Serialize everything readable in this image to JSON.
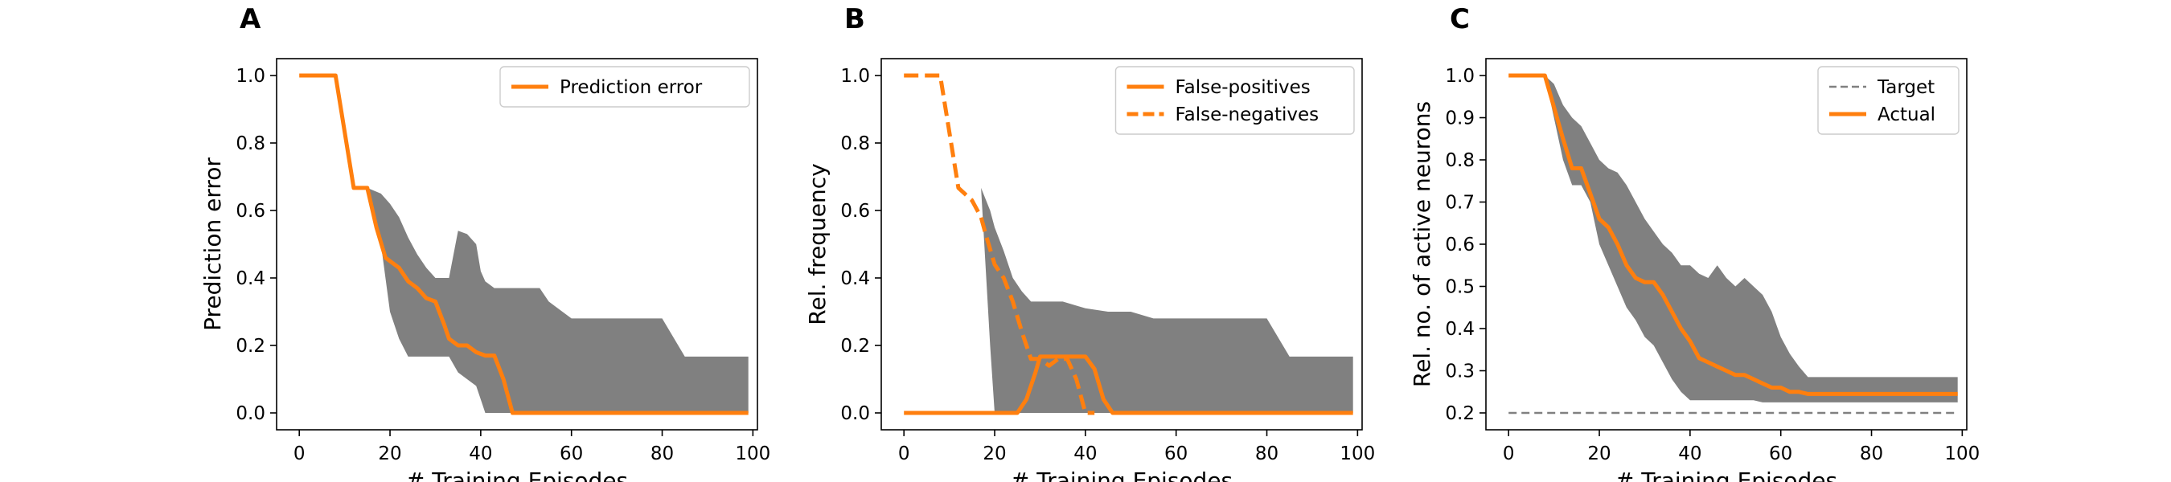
{
  "figure": {
    "colors": {
      "line": "#ff7f0e",
      "band": "#808080",
      "target": "#808080",
      "axis": "#000000"
    }
  },
  "chart_data": [
    {
      "panel_label": "A",
      "type": "line",
      "xlabel": "# Training Episodes",
      "ylabel": "Prediction error",
      "xlim": [
        -5,
        101
      ],
      "ylim": [
        -0.05,
        1.05
      ],
      "xticks": [
        0,
        20,
        40,
        60,
        80,
        100
      ],
      "yticks": [
        0.0,
        0.2,
        0.4,
        0.6,
        0.8,
        1.0
      ],
      "ytick_decimals": 1,
      "legend_position": "upper right",
      "series": [
        {
          "name": "Prediction error",
          "style": "solid",
          "x": [
            0,
            8,
            12,
            15,
            17,
            19,
            20,
            22,
            24,
            26,
            28,
            30,
            32,
            33,
            35,
            37,
            39,
            41,
            43,
            45,
            47,
            50,
            99
          ],
          "y": [
            1.0,
            1.0,
            0.667,
            0.667,
            0.55,
            0.46,
            0.45,
            0.43,
            0.39,
            0.37,
            0.34,
            0.33,
            0.26,
            0.22,
            0.2,
            0.2,
            0.18,
            0.17,
            0.17,
            0.1,
            0.0,
            0.0,
            0.0
          ]
        }
      ],
      "band": {
        "x": [
          15,
          18,
          20,
          22,
          24,
          26,
          28,
          30,
          33,
          35,
          37,
          39,
          40,
          41,
          43,
          45,
          48,
          50,
          53,
          55,
          60,
          65,
          70,
          75,
          80,
          85,
          99
        ],
        "upper": [
          0.667,
          0.65,
          0.62,
          0.58,
          0.52,
          0.47,
          0.43,
          0.4,
          0.4,
          0.54,
          0.53,
          0.5,
          0.42,
          0.39,
          0.37,
          0.37,
          0.37,
          0.37,
          0.37,
          0.33,
          0.28,
          0.28,
          0.28,
          0.28,
          0.28,
          0.167,
          0.167
        ],
        "lower": [
          0.667,
          0.5,
          0.3,
          0.22,
          0.167,
          0.167,
          0.167,
          0.167,
          0.167,
          0.12,
          0.1,
          0.08,
          0.04,
          0.0,
          0.0,
          0.0,
          0.0,
          0.0,
          0.0,
          0.0,
          0.0,
          0.0,
          0.0,
          0.0,
          0.0,
          0.0,
          0.0
        ]
      }
    },
    {
      "panel_label": "B",
      "type": "line",
      "xlabel": "# Training Episodes",
      "ylabel": "Rel. frequency",
      "xlim": [
        -5,
        101
      ],
      "ylim": [
        -0.05,
        1.05
      ],
      "xticks": [
        0,
        20,
        40,
        60,
        80,
        100
      ],
      "yticks": [
        0.0,
        0.2,
        0.4,
        0.6,
        0.8,
        1.0
      ],
      "ytick_decimals": 1,
      "legend_position": "upper right",
      "series": [
        {
          "name": "False-positives",
          "style": "solid",
          "x": [
            0,
            20,
            25,
            27,
            29,
            30,
            35,
            40,
            42,
            44,
            46,
            50,
            99
          ],
          "y": [
            0.0,
            0.0,
            0.0,
            0.04,
            0.12,
            0.167,
            0.167,
            0.167,
            0.13,
            0.04,
            0.0,
            0.0,
            0.0
          ]
        },
        {
          "name": "False-negatives",
          "style": "dashed",
          "x": [
            0,
            8,
            12,
            15,
            17,
            18,
            20,
            22,
            24,
            26,
            28,
            30,
            32,
            34,
            36,
            38,
            40,
            42
          ],
          "y": [
            1.0,
            1.0,
            0.667,
            0.63,
            0.58,
            0.53,
            0.44,
            0.4,
            0.33,
            0.24,
            0.16,
            0.16,
            0.14,
            0.16,
            0.16,
            0.1,
            0.0,
            0.0
          ]
        }
      ],
      "band": {
        "x": [
          17,
          19,
          20,
          22,
          24,
          26,
          28,
          30,
          32,
          35,
          40,
          45,
          50,
          55,
          60,
          65,
          70,
          75,
          80,
          85,
          99
        ],
        "upper": [
          0.667,
          0.6,
          0.55,
          0.48,
          0.4,
          0.36,
          0.33,
          0.33,
          0.33,
          0.33,
          0.31,
          0.3,
          0.3,
          0.28,
          0.28,
          0.28,
          0.28,
          0.28,
          0.28,
          0.167,
          0.167
        ],
        "lower": [
          0.667,
          0.2,
          0.0,
          0.0,
          0.0,
          0.0,
          0.0,
          0.0,
          0.0,
          0.0,
          0.0,
          0.0,
          0.0,
          0.0,
          0.0,
          0.0,
          0.0,
          0.0,
          0.0,
          0.0,
          0.0
        ]
      }
    },
    {
      "panel_label": "C",
      "type": "line",
      "xlabel": "# Training Episodes",
      "ylabel": "Rel. no. of active neurons",
      "xlim": [
        -5,
        101
      ],
      "ylim": [
        0.16,
        1.04
      ],
      "xticks": [
        0,
        20,
        40,
        60,
        80,
        100
      ],
      "yticks": [
        0.2,
        0.3,
        0.4,
        0.5,
        0.6,
        0.7,
        0.8,
        0.9,
        1.0
      ],
      "ytick_decimals": 1,
      "legend_position": "upper right",
      "series": [
        {
          "name": "Target",
          "style": "dashed-thin",
          "x": [
            0,
            99
          ],
          "y": [
            0.2,
            0.2
          ]
        },
        {
          "name": "Actual",
          "style": "solid",
          "x": [
            0,
            8,
            12,
            14,
            16,
            18,
            20,
            22,
            24,
            26,
            28,
            30,
            32,
            34,
            36,
            38,
            40,
            42,
            44,
            46,
            48,
            50,
            52,
            54,
            56,
            58,
            60,
            62,
            64,
            66,
            70,
            80,
            99
          ],
          "y": [
            1.0,
            1.0,
            0.85,
            0.78,
            0.78,
            0.72,
            0.66,
            0.64,
            0.6,
            0.55,
            0.52,
            0.51,
            0.51,
            0.48,
            0.44,
            0.4,
            0.37,
            0.33,
            0.32,
            0.31,
            0.3,
            0.29,
            0.29,
            0.28,
            0.27,
            0.26,
            0.26,
            0.25,
            0.25,
            0.245,
            0.245,
            0.245,
            0.245
          ]
        }
      ],
      "band": {
        "x": [
          8,
          10,
          12,
          14,
          16,
          18,
          20,
          22,
          24,
          26,
          28,
          30,
          32,
          34,
          36,
          38,
          40,
          42,
          44,
          46,
          48,
          50,
          52,
          54,
          56,
          58,
          60,
          62,
          64,
          66,
          99
        ],
        "upper": [
          1.0,
          0.98,
          0.93,
          0.9,
          0.88,
          0.84,
          0.8,
          0.78,
          0.77,
          0.74,
          0.7,
          0.66,
          0.63,
          0.6,
          0.58,
          0.55,
          0.55,
          0.53,
          0.52,
          0.55,
          0.52,
          0.5,
          0.52,
          0.5,
          0.48,
          0.44,
          0.38,
          0.34,
          0.31,
          0.285,
          0.285
        ],
        "lower": [
          1.0,
          0.9,
          0.8,
          0.74,
          0.74,
          0.7,
          0.6,
          0.55,
          0.5,
          0.45,
          0.42,
          0.38,
          0.36,
          0.32,
          0.28,
          0.25,
          0.23,
          0.23,
          0.23,
          0.23,
          0.23,
          0.23,
          0.23,
          0.23,
          0.225,
          0.225,
          0.225,
          0.225,
          0.225,
          0.225,
          0.225
        ]
      }
    }
  ]
}
